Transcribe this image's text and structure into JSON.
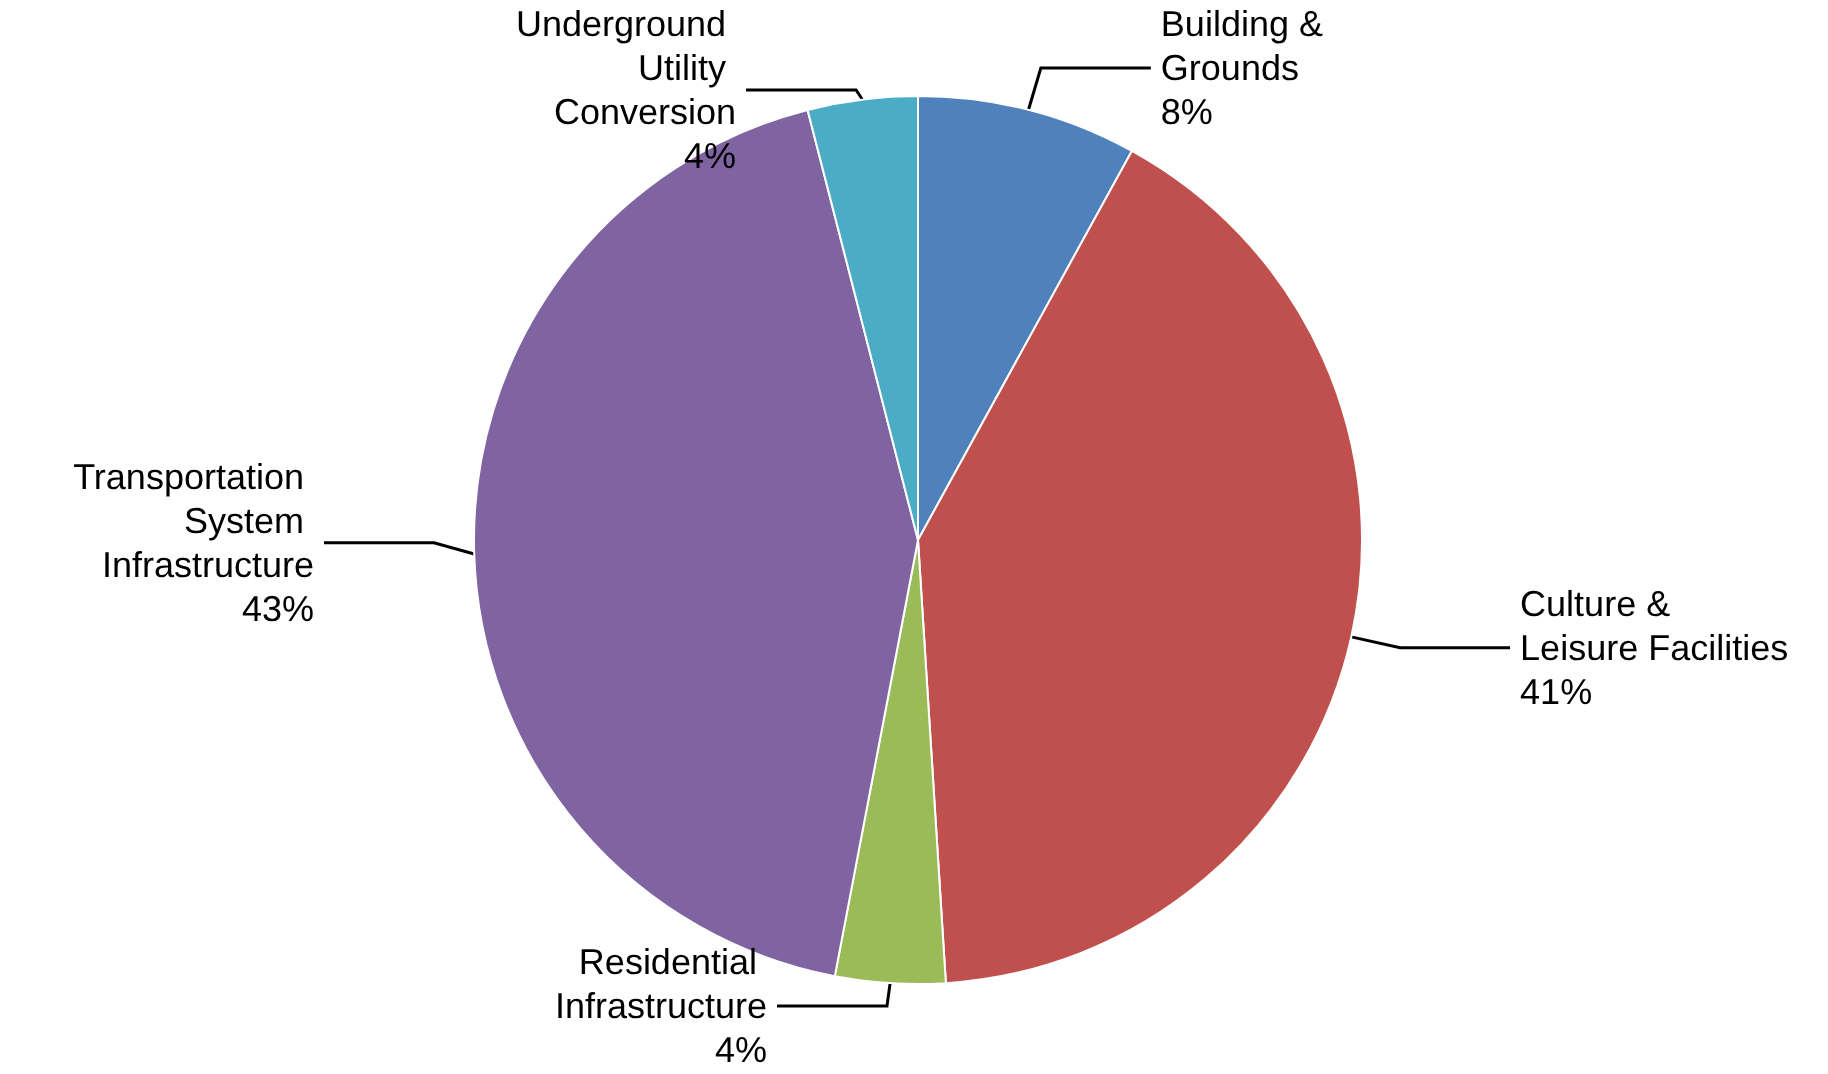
{
  "chart_data": {
    "type": "pie",
    "categories": [
      "Building & Grounds",
      "Culture & Leisure Facilities",
      "Residential Infrastructure",
      "Transportation System Infrastructure",
      "Underground Utility Conversion"
    ],
    "values": [
      8,
      41,
      4,
      43,
      4
    ],
    "value_labels": [
      "8%",
      "41%",
      "4%",
      "43%",
      "4%"
    ],
    "colors": [
      "#4f81bd",
      "#c0504d",
      "#9bbb59",
      "#8064a2",
      "#4bacc6"
    ],
    "legend": false
  }
}
